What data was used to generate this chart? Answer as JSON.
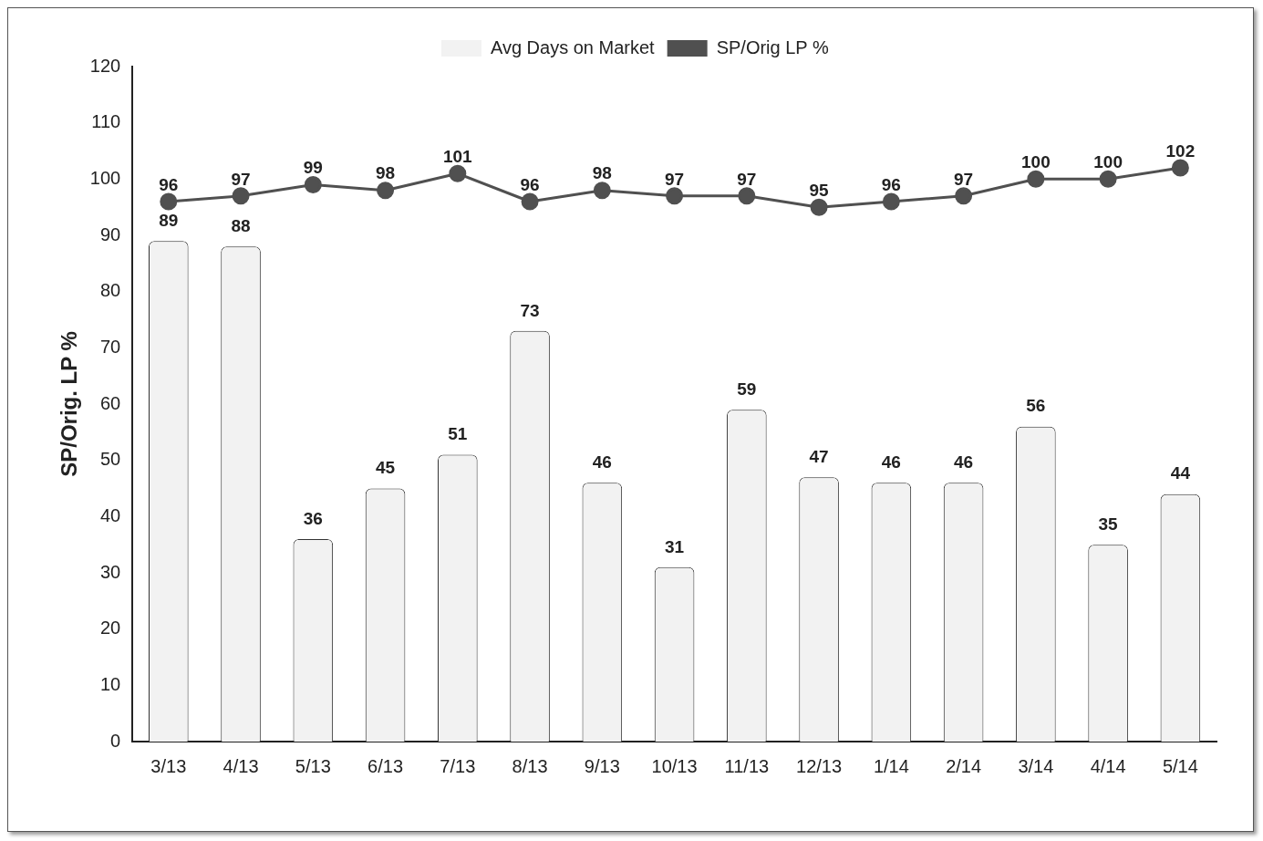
{
  "chart_data": {
    "type": "bar",
    "ylabel": "SP/Orig. LP %",
    "categories": [
      "3/13",
      "4/13",
      "5/13",
      "6/13",
      "7/13",
      "8/13",
      "9/13",
      "10/13",
      "11/13",
      "12/13",
      "1/14",
      "2/14",
      "3/14",
      "4/14",
      "5/14"
    ],
    "series": [
      {
        "name": "Avg Days on Market",
        "color": "#f2f2f2",
        "values": [
          89,
          88,
          36,
          45,
          51,
          73,
          46,
          31,
          59,
          47,
          46,
          46,
          56,
          35,
          44
        ]
      },
      {
        "name": "SP/Orig LP %",
        "type": "line",
        "color": "#505050",
        "values": [
          96,
          97,
          99,
          98,
          101,
          96,
          98,
          97,
          97,
          95,
          96,
          97,
          100,
          100,
          102
        ]
      }
    ],
    "ylim": [
      0,
      120
    ],
    "yticks": [
      0,
      10,
      20,
      30,
      40,
      50,
      60,
      70,
      80,
      90,
      100,
      110,
      120
    ],
    "grid": false,
    "legend": "top",
    "marker": "circle",
    "data_labels": true
  }
}
